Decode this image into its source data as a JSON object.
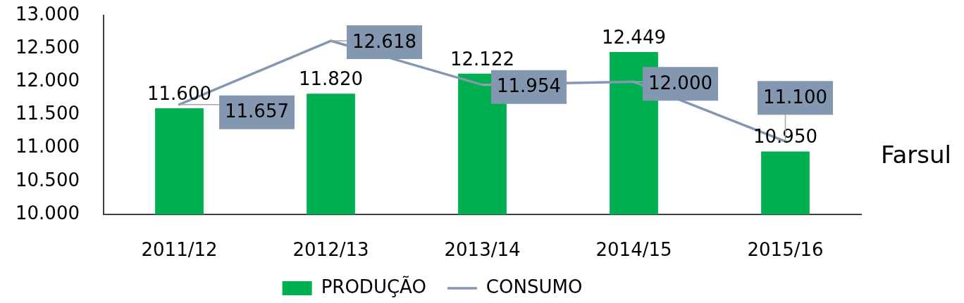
{
  "chart_data": {
    "type": "bar",
    "categories": [
      "2011/12",
      "2012/13",
      "2013/14",
      "2014/15",
      "2015/16"
    ],
    "series": [
      {
        "name": "PRODUÇÃO",
        "color": "#00b050",
        "values": [
          11600,
          11820,
          12122,
          12449,
          10950
        ],
        "value_labels": [
          "11.600",
          "11.820",
          "12.122",
          "12.449",
          "10.950"
        ]
      },
      {
        "name": "CONSUMO",
        "type": "line",
        "color": "#8497b0",
        "values": [
          11657,
          12618,
          11954,
          12000,
          11100
        ],
        "value_labels": [
          "11.657",
          "12.618",
          "11.954",
          "12.000",
          "11.100"
        ]
      }
    ],
    "ylim": [
      10000,
      13000
    ],
    "yticks": [
      {
        "value": 10000,
        "label": "10.000"
      },
      {
        "value": 10500,
        "label": "10.500"
      },
      {
        "value": 11000,
        "label": "11.000"
      },
      {
        "value": 11500,
        "label": "11.500"
      },
      {
        "value": 12000,
        "label": "12.000"
      },
      {
        "value": 12500,
        "label": "12.500"
      },
      {
        "value": 13000,
        "label": "13.000"
      }
    ],
    "legend": "bottom",
    "marker": "none",
    "line_style": "solid",
    "annotations": [
      "Farsul"
    ]
  }
}
